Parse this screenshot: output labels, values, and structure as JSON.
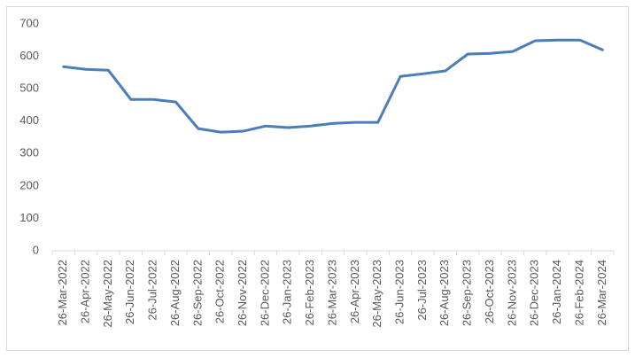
{
  "chart_data": {
    "type": "line",
    "categories": [
      "26-Mar-2022",
      "26-Apr-2022",
      "26-May-2022",
      "26-Jun-2022",
      "26-Jul-2022",
      "26-Aug-2022",
      "26-Sep-2022",
      "26-Oct-2022",
      "26-Nov-2022",
      "26-Dec-2022",
      "26-Jan-2023",
      "26-Feb-2023",
      "26-Mar-2023",
      "26-Apr-2023",
      "26-May-2023",
      "26-Jun-2023",
      "26-Jul-2023",
      "26-Aug-2023",
      "26-Sep-2023",
      "26-Oct-2023",
      "26-Nov-2023",
      "26-Dec-2023",
      "26-Jan-2024",
      "26-Feb-2024",
      "26-Mar-2024"
    ],
    "values": [
      568,
      560,
      557,
      467,
      467,
      459,
      377,
      366,
      369,
      385,
      380,
      385,
      393,
      396,
      396,
      538,
      546,
      555,
      607,
      609,
      615,
      648,
      650,
      650,
      620
    ],
    "color": "#4a7ebb",
    "ylim": [
      0,
      700
    ],
    "yticks": [
      0,
      100,
      200,
      300,
      400,
      500,
      600,
      700
    ]
  }
}
